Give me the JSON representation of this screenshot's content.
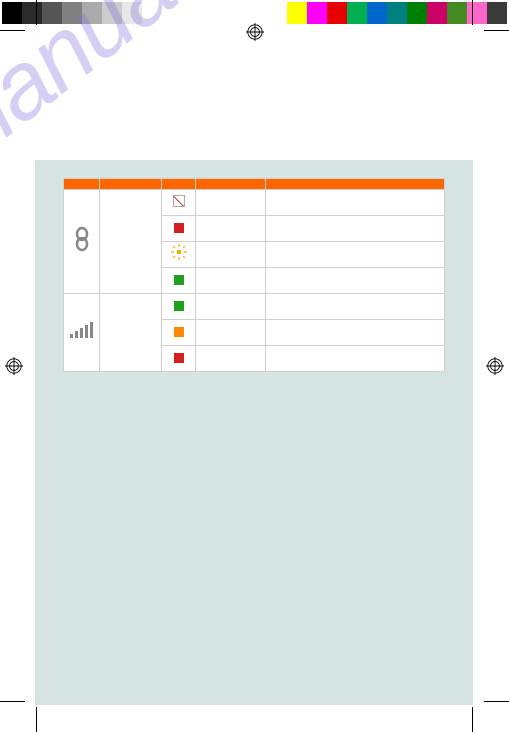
{
  "watermark_text": "manualshive.com",
  "colorbar_left": [
    "#000000",
    "#2a2a2a",
    "#555555",
    "#808080",
    "#aaaaaa",
    "#cccccc",
    "#e8e8e8",
    "#ffffff",
    "#ffffff",
    "#ffffff",
    "#ffffff",
    "#ffffff"
  ],
  "colorbar_right": [
    "#ffffff",
    "#ffff00",
    "#ff00ff",
    "#e60000",
    "#00b050",
    "#0066cc",
    "#008080",
    "#008000",
    "#cc0066",
    "#448822",
    "#ff66cc",
    "#3a3a3a"
  ],
  "table": {
    "header_color": "#ff6600",
    "border_color": "#d0d0d0",
    "cell_bg": "#ffffff",
    "rows": [
      {
        "group": "network",
        "status_type": "empty",
        "color": null
      },
      {
        "group": "network",
        "status_type": "solid",
        "color": "#d62020"
      },
      {
        "group": "network",
        "status_type": "burst",
        "color": "#ffaa00"
      },
      {
        "group": "network",
        "status_type": "solid",
        "color": "#1fa01f"
      },
      {
        "group": "signal",
        "status_type": "solid",
        "color": "#1fa01f"
      },
      {
        "group": "signal",
        "status_type": "solid",
        "color": "#ff8800"
      },
      {
        "group": "signal",
        "status_type": "solid",
        "color": "#d62020"
      }
    ],
    "groups": {
      "network": {
        "rowspan": 4,
        "icon": "link"
      },
      "signal": {
        "rowspan": 3,
        "icon": "bars"
      }
    },
    "columns": [
      {
        "id": "icon",
        "width": 36
      },
      {
        "id": "label",
        "width": 62
      },
      {
        "id": "status",
        "width": 34
      },
      {
        "id": "desc1",
        "width": 70
      },
      {
        "id": "desc2",
        "width": 180
      }
    ]
  },
  "page_bg": "#d5e3e3"
}
